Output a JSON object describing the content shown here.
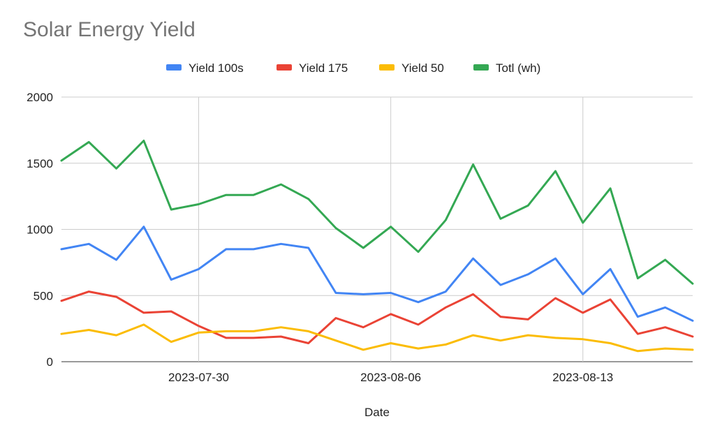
{
  "chart_data": {
    "type": "line",
    "title": "Solar Energy Yield",
    "xlabel": "Date",
    "ylabel": "",
    "ylim": [
      0,
      2000
    ],
    "yticks": [
      "0",
      "500",
      "1000",
      "1500",
      "2000"
    ],
    "xticks": [
      "2023-07-30",
      "2023-08-06",
      "2023-08-13"
    ],
    "x": [
      "2023-07-25",
      "2023-07-26",
      "2023-07-27",
      "2023-07-28",
      "2023-07-29",
      "2023-07-30",
      "2023-07-31",
      "2023-08-01",
      "2023-08-02",
      "2023-08-03",
      "2023-08-04",
      "2023-08-05",
      "2023-08-06",
      "2023-08-07",
      "2023-08-08",
      "2023-08-09",
      "2023-08-10",
      "2023-08-11",
      "2023-08-12",
      "2023-08-13",
      "2023-08-14",
      "2023-08-15",
      "2023-08-16",
      "2023-08-17"
    ],
    "legend_position": "top",
    "grid": true,
    "series": [
      {
        "name": "Yield 100s",
        "color": "#4285f4",
        "values": [
          850,
          890,
          770,
          1020,
          620,
          700,
          850,
          850,
          890,
          860,
          520,
          510,
          520,
          450,
          530,
          780,
          580,
          660,
          780,
          510,
          700,
          340,
          410,
          310
        ]
      },
      {
        "name": "Yield 175",
        "color": "#ea4335",
        "values": [
          460,
          530,
          490,
          370,
          380,
          270,
          180,
          180,
          190,
          140,
          330,
          260,
          360,
          280,
          410,
          510,
          340,
          320,
          480,
          370,
          470,
          210,
          260,
          190
        ]
      },
      {
        "name": "Yield 50",
        "color": "#fbbc04",
        "values": [
          210,
          240,
          200,
          280,
          150,
          220,
          230,
          230,
          260,
          230,
          160,
          90,
          140,
          100,
          130,
          200,
          160,
          200,
          180,
          170,
          140,
          80,
          100,
          90
        ]
      },
      {
        "name": "Totl (wh)",
        "color": "#34a853",
        "values": [
          1520,
          1660,
          1460,
          1670,
          1150,
          1190,
          1260,
          1260,
          1340,
          1230,
          1010,
          860,
          1020,
          830,
          1070,
          1490,
          1080,
          1180,
          1440,
          1050,
          1310,
          630,
          770,
          590
        ]
      }
    ]
  }
}
